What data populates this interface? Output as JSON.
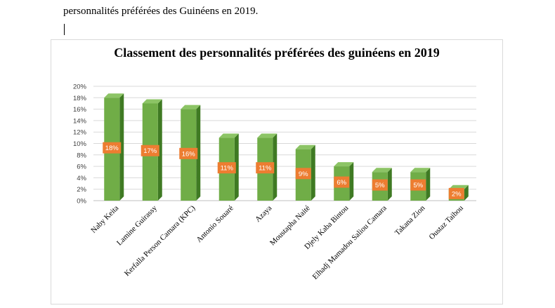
{
  "document": {
    "text_line": "personnalités préférées des Guinéens en 2019."
  },
  "chart_data": {
    "type": "bar",
    "title": "Classement des personnalités préférées des guinéens en 2019",
    "categories": [
      "Naby Keita",
      "Lamine Guirassy",
      "Kerfalla Person Camara (KPC)",
      "Antonio Souaré",
      "Azaya",
      "Moustapha Naité",
      "Djely Kaba Bintou",
      "Elhadj Mamadou Saliou Camara",
      "Takana Zion",
      "Oustaz Taibou"
    ],
    "values": [
      18,
      17,
      16,
      11,
      11,
      9,
      6,
      5,
      5,
      2
    ],
    "data_labels": [
      "18%",
      "17%",
      "16%",
      "11%",
      "11%",
      "9%",
      "6%",
      "5%",
      "5%",
      "2%"
    ],
    "yticks": [
      "0%",
      "2%",
      "4%",
      "6%",
      "8%",
      "10%",
      "12%",
      "14%",
      "16%",
      "18%",
      "20%"
    ],
    "ylim": [
      0,
      20
    ],
    "grid": true,
    "colors": {
      "bar_front": "#70ad47",
      "bar_side": "#3f7a23",
      "bar_top": "#8cc465",
      "label_bg": "#ed7d31",
      "grid": "#d9d9d9"
    }
  }
}
